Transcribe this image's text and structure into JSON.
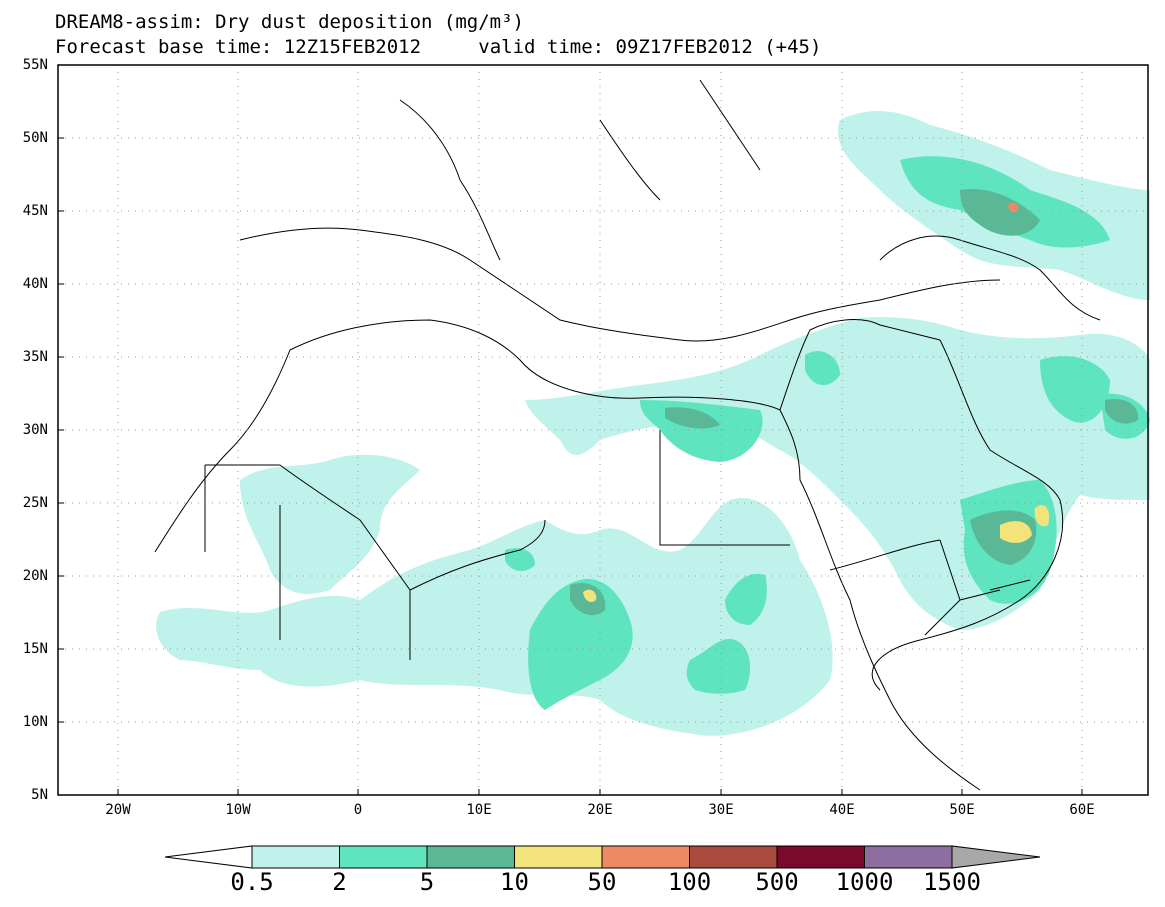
{
  "title": {
    "line1": "DREAM8-assim: Dry dust deposition (mg/m³)",
    "base_time": "Forecast base time: 12Z15FEB2012",
    "valid_time": "valid time: 09Z17FEB2012 (+45)"
  },
  "lat_labels": [
    "55N",
    "50N",
    "45N",
    "40N",
    "35N",
    "30N",
    "25N",
    "20N",
    "15N",
    "10N",
    "5N"
  ],
  "lon_labels": [
    "20W",
    "10W",
    "0",
    "10E",
    "20E",
    "30E",
    "40E",
    "50E",
    "60E"
  ],
  "colorbar": {
    "labels": [
      "0.5",
      "2",
      "5",
      "10",
      "50",
      "100",
      "500",
      "1000",
      "1500"
    ],
    "colors": [
      "#bff2ea",
      "#5ee4bf",
      "#5ab896",
      "#f2e47a",
      "#ec8a66",
      "#a84a3c",
      "#7a0a2c",
      "#8e6ea0",
      "#a8a8a8"
    ]
  },
  "map_extent": {
    "lon": [
      -25,
      65
    ],
    "lat": [
      5,
      55
    ]
  }
}
